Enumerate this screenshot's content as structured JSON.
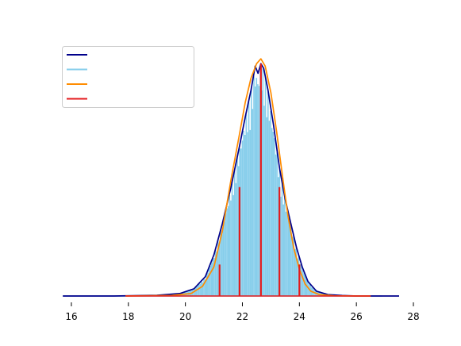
{
  "chart_data": {
    "type": "line",
    "title": "",
    "xlabel": "",
    "ylabel": "",
    "xlim": [
      15.5,
      28
    ],
    "ylim": [
      0,
      1.0
    ],
    "x_ticks": [
      16,
      18,
      20,
      22,
      24,
      26,
      28
    ],
    "x_tick_labels": [
      "16",
      "18",
      "20",
      "22",
      "24",
      "26",
      "28"
    ],
    "grid": false,
    "legend": {
      "placement": "top-left",
      "entries": [
        "",
        "",
        "",
        ""
      ]
    },
    "colors": {
      "navy": "#00008b",
      "skyblue": "#87ceeb",
      "orange": "#ff8c00",
      "red": "#e41a1c"
    },
    "series": [
      {
        "color": "#00008b",
        "style": "line",
        "x": [
          15.7,
          17.5,
          19.0,
          19.8,
          20.3,
          20.7,
          21.0,
          21.3,
          21.6,
          21.9,
          22.1,
          22.3,
          22.45,
          22.55,
          22.65,
          22.75,
          22.9,
          23.1,
          23.3,
          23.5,
          23.7,
          23.9,
          24.1,
          24.3,
          24.6,
          25.0,
          25.5,
          26.0,
          27.5
        ],
        "y": [
          0.0,
          0.0,
          0.003,
          0.01,
          0.03,
          0.08,
          0.17,
          0.3,
          0.45,
          0.62,
          0.74,
          0.85,
          0.95,
          0.92,
          0.96,
          0.94,
          0.85,
          0.7,
          0.53,
          0.4,
          0.3,
          0.2,
          0.12,
          0.06,
          0.02,
          0.006,
          0.002,
          0.0,
          0.0
        ]
      },
      {
        "color": "#87ceeb",
        "style": "filled-spikes",
        "x": [
          15.7,
          17.5,
          19.0,
          19.8,
          20.3,
          20.7,
          21.0,
          21.3,
          21.6,
          21.9,
          22.1,
          22.3,
          22.45,
          22.55,
          22.65,
          22.75,
          22.9,
          23.1,
          23.3,
          23.5,
          23.7,
          23.9,
          24.1,
          24.3,
          24.6,
          25.0,
          25.5,
          26.0,
          26.9
        ],
        "y": [
          0.0,
          0.0,
          0.003,
          0.01,
          0.03,
          0.08,
          0.17,
          0.3,
          0.45,
          0.62,
          0.74,
          0.85,
          0.95,
          0.92,
          0.96,
          0.94,
          0.85,
          0.7,
          0.53,
          0.4,
          0.3,
          0.2,
          0.12,
          0.06,
          0.02,
          0.006,
          0.002,
          0.0,
          0.0
        ]
      },
      {
        "color": "#ff8c00",
        "style": "line",
        "x": [
          17.9,
          19.5,
          20.2,
          20.6,
          21.0,
          21.3,
          21.6,
          21.9,
          22.1,
          22.3,
          22.5,
          22.65,
          22.8,
          23.0,
          23.2,
          23.4,
          23.6,
          23.8,
          24.0,
          24.2,
          24.4,
          24.7,
          25.2,
          26.0,
          26.5
        ],
        "y": [
          0.0,
          0.002,
          0.01,
          0.04,
          0.12,
          0.27,
          0.48,
          0.67,
          0.8,
          0.9,
          0.96,
          0.98,
          0.95,
          0.84,
          0.68,
          0.5,
          0.33,
          0.2,
          0.11,
          0.05,
          0.02,
          0.006,
          0.001,
          0.0,
          0.0
        ]
      },
      {
        "color": "#e41a1c",
        "style": "spikes",
        "x": [
          21.2,
          21.9,
          22.65,
          23.3,
          24.0
        ],
        "y": [
          0.13,
          0.45,
          0.96,
          0.45,
          0.13
        ]
      },
      {
        "color": "#e41a1c",
        "style": "baseline",
        "x": [
          17.9,
          26.5
        ],
        "y": [
          0.0,
          0.0
        ]
      }
    ]
  }
}
